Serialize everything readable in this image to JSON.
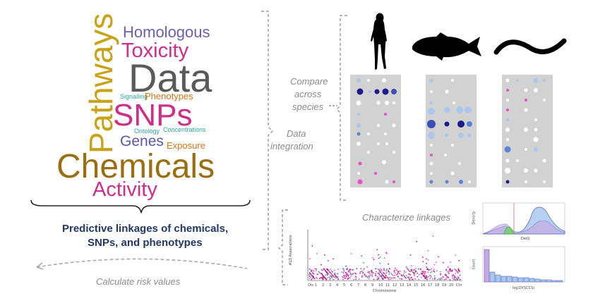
{
  "word_cloud": {
    "words": [
      {
        "text": "Homologous",
        "color": "#6a5fb0"
      },
      {
        "text": "Toxicity",
        "color": "#cc2e88"
      },
      {
        "text": "Data",
        "color": "#5a5a5a"
      },
      {
        "text": "Pathways",
        "color": "#c8a219"
      },
      {
        "text": "Signalling",
        "color": "#2aa59a"
      },
      {
        "text": "Phenotypes",
        "color": "#d8731a"
      },
      {
        "text": "SNPs",
        "color": "#cc2e88"
      },
      {
        "text": "Ontology",
        "color": "#2aa59a"
      },
      {
        "text": "Concentrations",
        "color": "#2aa59a"
      },
      {
        "text": "Genes",
        "color": "#5b58a8"
      },
      {
        "text": "Exposure",
        "color": "#d8731a"
      },
      {
        "text": "Chemicals",
        "color": "#9a6f14"
      },
      {
        "text": "Activity",
        "color": "#cc2e88"
      }
    ]
  },
  "result_text": {
    "line1": "Predictive linkages of chemicals,",
    "line2": "SNPs, and phenotypes",
    "color": "#1f3864"
  },
  "labels": {
    "calculate": "Calculate risk values",
    "compare_1": "Compare",
    "compare_2": "across",
    "compare_3": "species",
    "data": "Data",
    "integration": "integration",
    "characterize": "Characterize linkages"
  },
  "species_icons": [
    "human-silhouette-icon",
    "fish-silhouette-icon",
    "worm-silhouette-icon"
  ],
  "manhattan_plot": {
    "ylabel": "#LD Associations",
    "xlabel": "Chromosome",
    "x_ticks": [
      "Ols",
      "1",
      "2",
      "3",
      "4",
      "5",
      "6",
      "7",
      "8",
      "9",
      "10",
      "11",
      "12",
      "13",
      "14",
      "15",
      "16",
      "17",
      "18",
      "19",
      "20",
      "Chr"
    ]
  },
  "density_plot": {
    "ylabel": "Density",
    "xlabel": "DelQ"
  },
  "histogram_plot": {
    "ylabel": "Count",
    "xlabel": "log10(SCCS)"
  },
  "colors": {
    "panel": "#d2d2d2",
    "bracket": "#999999",
    "dark_blue": "#1d1b8c",
    "blue": "#5b84d6",
    "light_blue": "#a9c8ee",
    "pink": "#e84fd0",
    "magenta": "#d51c7b"
  }
}
